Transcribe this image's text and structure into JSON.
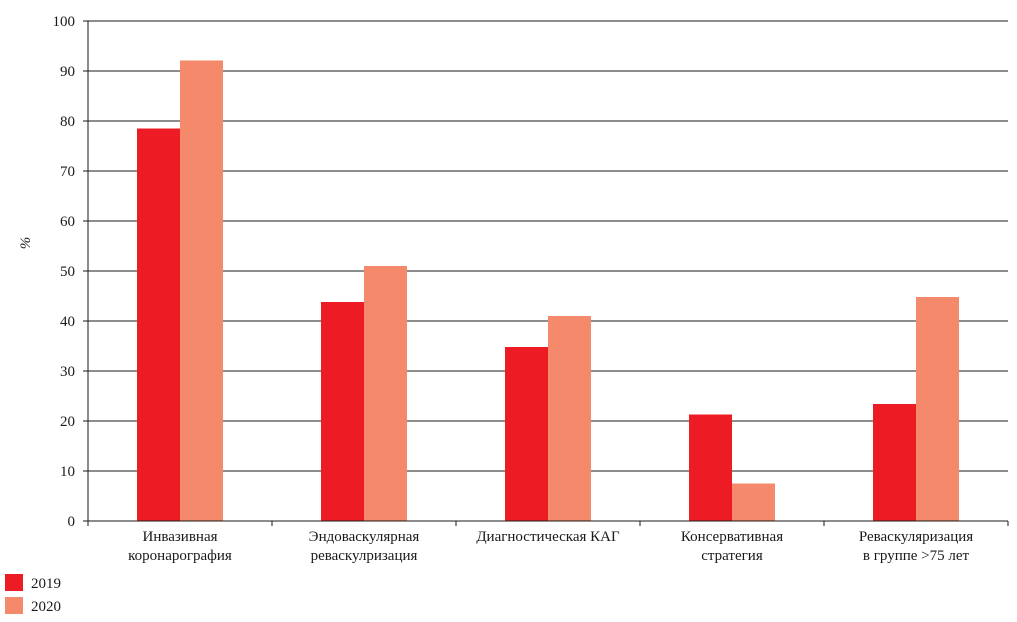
{
  "chart_data": {
    "type": "bar",
    "title": "",
    "xlabel": "",
    "ylabel": "%",
    "ylim": [
      0,
      100
    ],
    "yticks": [
      0,
      10,
      20,
      30,
      40,
      50,
      60,
      70,
      80,
      90,
      100
    ],
    "grid": true,
    "legend_position": "bottom-left",
    "categories": [
      [
        "Инвазивная",
        "коронарография"
      ],
      [
        "Эндоваскулярная",
        "реваскулризация"
      ],
      [
        "Диагностическая КАГ"
      ],
      [
        "Консервативная",
        "стратегия"
      ],
      [
        "Реваскуляризация",
        "в группе >75 лет"
      ]
    ],
    "series": [
      {
        "name": "2019",
        "color": "#ed1c24",
        "values": [
          78.5,
          43.8,
          34.8,
          21.3,
          23.4
        ]
      },
      {
        "name": "2020",
        "color": "#f4896b",
        "values": [
          92.1,
          51.0,
          41.0,
          7.5,
          44.8
        ]
      }
    ]
  }
}
